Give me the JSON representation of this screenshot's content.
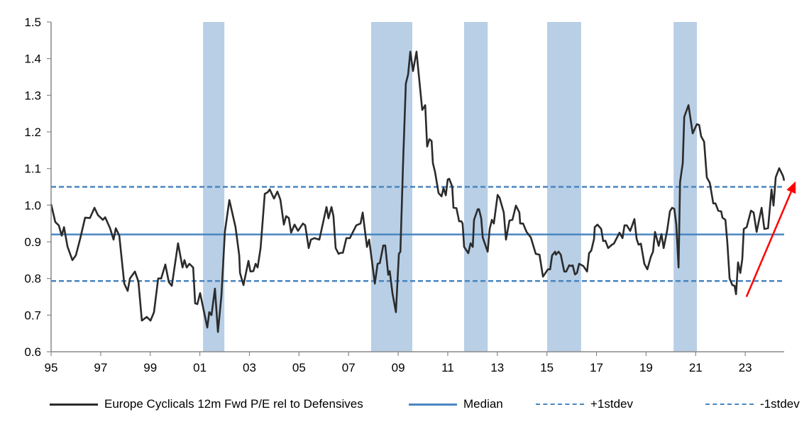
{
  "chart_data": {
    "type": "line",
    "title": "",
    "xlabel": "",
    "ylabel": "",
    "xlim": [
      1995,
      2024.57
    ],
    "ylim": [
      0.6,
      1.5
    ],
    "grid": false,
    "legend_placement": "bottom",
    "y_ticks": [
      "0.6",
      "0.7",
      "0.8",
      "0.9",
      "1.0",
      "1.1",
      "1.2",
      "1.3",
      "1.4",
      "1.5"
    ],
    "x_ticks": [
      {
        "year": 1995,
        "label": "95"
      },
      {
        "year": 1997,
        "label": "97"
      },
      {
        "year": 1999,
        "label": "99"
      },
      {
        "year": 2001,
        "label": "01"
      },
      {
        "year": 2003,
        "label": "03"
      },
      {
        "year": 2005,
        "label": "05"
      },
      {
        "year": 2007,
        "label": "07"
      },
      {
        "year": 2009,
        "label": "09"
      },
      {
        "year": 2011,
        "label": "11"
      },
      {
        "year": 2013,
        "label": "13"
      },
      {
        "year": 2015,
        "label": "15"
      },
      {
        "year": 2017,
        "label": "17"
      },
      {
        "year": 2019,
        "label": "19"
      },
      {
        "year": 2021,
        "label": "21"
      },
      {
        "year": 2023,
        "label": "23"
      }
    ],
    "shaded_periods": [
      [
        2001.13,
        2001.99
      ],
      [
        2007.91,
        2009.57
      ],
      [
        2011.66,
        2012.61
      ],
      [
        2015.01,
        2016.38
      ],
      [
        2020.11,
        2021.05
      ]
    ],
    "reference_lines": [
      {
        "name": "Median",
        "value": 0.92,
        "style": "solid",
        "color": "#4a86c0"
      },
      {
        "name": "+1stdev",
        "value": 1.05,
        "style": "dashed",
        "color": "#4a86c0"
      },
      {
        "name": "-1stdev",
        "value": 0.793,
        "style": "dashed",
        "color": "#4a86c0"
      }
    ],
    "series": [
      {
        "name": "Europe Cyclicals 12m Fwd P/E rel to Defensives",
        "color": "#2b2b2b",
        "x": [
          1995.0,
          1995.17,
          1995.31,
          1995.43,
          1995.52,
          1995.66,
          1995.86,
          1996.0,
          1996.17,
          1996.37,
          1996.57,
          1996.75,
          1996.89,
          1997.09,
          1997.18,
          1997.38,
          1997.52,
          1997.61,
          1997.75,
          1997.95,
          1998.09,
          1998.18,
          1998.38,
          1998.52,
          1998.66,
          1998.86,
          1999.01,
          1999.15,
          1999.32,
          1999.44,
          1999.61,
          1999.75,
          1999.87,
          2000.12,
          2000.3,
          2000.38,
          2000.47,
          2000.58,
          2000.73,
          2000.81,
          2000.9,
          2001.01,
          2001.3,
          2001.38,
          2001.47,
          2001.61,
          2001.73,
          2001.87,
          2002.01,
          2002.1,
          2002.19,
          2002.44,
          2002.59,
          2002.62,
          2002.76,
          2002.96,
          2003.04,
          2003.16,
          2003.25,
          2003.33,
          2003.45,
          2003.62,
          2003.73,
          2003.82,
          2003.99,
          2004.13,
          2004.25,
          2004.39,
          2004.48,
          2004.59,
          2004.68,
          2004.82,
          2004.96,
          2005.16,
          2005.25,
          2005.39,
          2005.48,
          2005.62,
          2005.82,
          2006.11,
          2006.19,
          2006.31,
          2006.39,
          2006.48,
          2006.6,
          2006.68,
          2006.77,
          2006.91,
          2007.05,
          2007.31,
          2007.48,
          2007.57,
          2007.74,
          2007.83,
          2008.06,
          2008.17,
          2008.26,
          2008.4,
          2008.48,
          2008.6,
          2008.66,
          2008.77,
          2008.91,
          2009.03,
          2009.09,
          2009.2,
          2009.31,
          2009.4,
          2009.49,
          2009.6,
          2009.74,
          2009.97,
          2010.09,
          2010.17,
          2010.26,
          2010.35,
          2010.4,
          2010.49,
          2010.63,
          2010.75,
          2010.83,
          2010.92,
          2011.0,
          2011.06,
          2011.18,
          2011.23,
          2011.35,
          2011.46,
          2011.55,
          2011.6,
          2011.66,
          2011.83,
          2011.92,
          2012.01,
          2012.06,
          2012.21,
          2012.26,
          2012.35,
          2012.41,
          2012.61,
          2012.69,
          2012.78,
          2012.86,
          2013.01,
          2013.09,
          2013.26,
          2013.35,
          2013.49,
          2013.61,
          2013.75,
          2013.89,
          2013.92,
          2014.04,
          2014.18,
          2014.35,
          2014.55,
          2014.7,
          2014.84,
          2015.04,
          2015.13,
          2015.21,
          2015.33,
          2015.36,
          2015.47,
          2015.56,
          2015.7,
          2015.78,
          2015.9,
          2015.99,
          2016.04,
          2016.13,
          2016.21,
          2016.3,
          2016.47,
          2016.62,
          2016.7,
          2016.79,
          2016.9,
          2016.93,
          2017.04,
          2017.19,
          2017.27,
          2017.36,
          2017.47,
          2017.62,
          2017.7,
          2017.93,
          2018.05,
          2018.13,
          2018.22,
          2018.36,
          2018.53,
          2018.62,
          2018.7,
          2018.79,
          2018.93,
          2019.05,
          2019.19,
          2019.28,
          2019.36,
          2019.51,
          2019.62,
          2019.71,
          2019.85,
          2019.96,
          2020.05,
          2020.14,
          2020.22,
          2020.31,
          2020.37,
          2020.48,
          2020.54,
          2020.71,
          2020.88,
          2021.05,
          2021.14,
          2021.22,
          2021.34,
          2021.45,
          2021.57,
          2021.71,
          2021.8,
          2021.91,
          2022.03,
          2022.08,
          2022.2,
          2022.28,
          2022.37,
          2022.48,
          2022.57,
          2022.63,
          2022.71,
          2022.8,
          2022.88,
          2022.94,
          2023.06,
          2023.23,
          2023.34,
          2023.46,
          2023.66,
          2023.77,
          2023.92,
          2024.06,
          2024.14,
          2024.23,
          2024.37,
          2024.52,
          2024.57
        ],
        "y": [
          1.003,
          0.954,
          0.945,
          0.917,
          0.94,
          0.887,
          0.85,
          0.863,
          0.908,
          0.966,
          0.965,
          0.993,
          0.973,
          0.96,
          0.967,
          0.937,
          0.906,
          0.937,
          0.917,
          0.786,
          0.766,
          0.8,
          0.819,
          0.792,
          0.685,
          0.695,
          0.685,
          0.708,
          0.8,
          0.8,
          0.838,
          0.79,
          0.78,
          0.896,
          0.83,
          0.85,
          0.83,
          0.84,
          0.83,
          0.732,
          0.73,
          0.76,
          0.666,
          0.708,
          0.7,
          0.772,
          0.654,
          0.753,
          0.927,
          0.97,
          1.014,
          0.94,
          0.863,
          0.815,
          0.782,
          0.848,
          0.819,
          0.82,
          0.84,
          0.83,
          0.883,
          1.031,
          1.035,
          1.043,
          1.018,
          1.037,
          1.015,
          0.947,
          0.97,
          0.965,
          0.925,
          0.947,
          0.93,
          0.95,
          0.945,
          0.883,
          0.906,
          0.91,
          0.906,
          0.995,
          0.964,
          0.995,
          0.97,
          0.883,
          0.867,
          0.87,
          0.87,
          0.91,
          0.91,
          0.945,
          0.95,
          0.98,
          0.886,
          0.906,
          0.786,
          0.84,
          0.842,
          0.89,
          0.89,
          0.81,
          0.82,
          0.76,
          0.708,
          0.867,
          0.873,
          1.121,
          1.332,
          1.357,
          1.419,
          1.366,
          1.419,
          1.26,
          1.273,
          1.16,
          1.18,
          1.175,
          1.115,
          1.09,
          1.033,
          1.024,
          1.047,
          1.027,
          1.07,
          1.072,
          1.051,
          0.993,
          0.992,
          0.956,
          0.956,
          0.95,
          0.886,
          0.869,
          0.896,
          0.886,
          0.96,
          0.989,
          0.989,
          0.964,
          0.912,
          0.873,
          0.935,
          0.96,
          0.95,
          1.028,
          1.02,
          0.98,
          0.906,
          0.958,
          0.96,
          0.999,
          0.98,
          0.95,
          0.95,
          0.927,
          0.912,
          0.867,
          0.865,
          0.805,
          0.825,
          0.825,
          0.863,
          0.873,
          0.865,
          0.873,
          0.865,
          0.819,
          0.819,
          0.836,
          0.834,
          0.836,
          0.811,
          0.815,
          0.84,
          0.834,
          0.819,
          0.869,
          0.876,
          0.908,
          0.94,
          0.947,
          0.935,
          0.902,
          0.903,
          0.883,
          0.892,
          0.895,
          0.925,
          0.91,
          0.945,
          0.945,
          0.93,
          0.962,
          0.908,
          0.892,
          0.895,
          0.84,
          0.825,
          0.859,
          0.873,
          0.927,
          0.889,
          0.921,
          0.883,
          0.931,
          0.983,
          0.993,
          0.99,
          0.947,
          0.83,
          1.063,
          1.115,
          1.241,
          1.273,
          1.196,
          1.221,
          1.219,
          1.188,
          1.173,
          1.076,
          1.061,
          1.005,
          1.005,
          0.985,
          0.983,
          0.966,
          0.96,
          0.896,
          0.8,
          0.782,
          0.78,
          0.757,
          0.844,
          0.815,
          0.853,
          0.935,
          0.94,
          0.985,
          0.98,
          0.927,
          0.993,
          0.935,
          0.937,
          1.043,
          0.999,
          1.076,
          1.101,
          1.08,
          1.067
        ]
      }
    ],
    "annotations": [
      {
        "type": "arrow",
        "color": "#ff0000",
        "from": [
          2023.05,
          0.75
        ],
        "to": [
          2025.03,
          1.065
        ]
      }
    ],
    "legend": [
      {
        "label": "Europe Cyclicals 12m Fwd P/E rel to Defensives",
        "style": "solid",
        "color": "#2b2b2b"
      },
      {
        "label": "Median",
        "style": "solid",
        "color": "#4a86c0"
      },
      {
        "label": "+1stdev",
        "style": "dashed",
        "color": "#4a86c0"
      },
      {
        "label": "-1stdev",
        "style": "dashed",
        "color": "#4a86c0"
      }
    ],
    "colors": {
      "shading": "#b8cfe6",
      "axis": "#888888"
    }
  }
}
